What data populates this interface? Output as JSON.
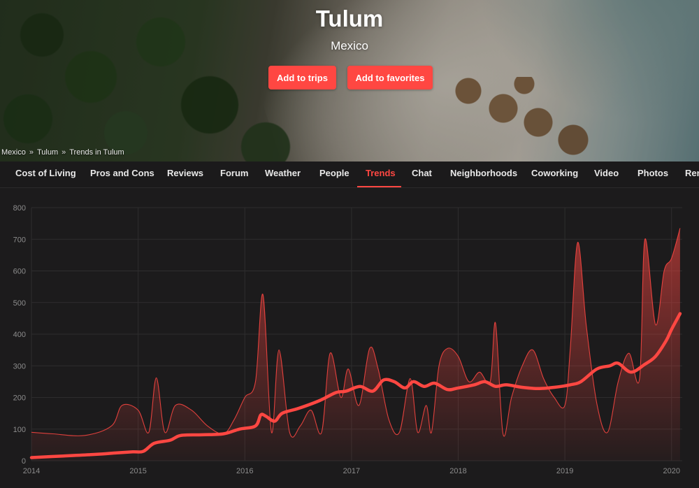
{
  "hero": {
    "title": "Tulum",
    "country": "Mexico",
    "add_to_trips_label": "Add to trips",
    "add_to_favorites_label": "Add to favorites"
  },
  "breadcrumb": [
    "Mexico",
    "Tulum",
    "Trends in Tulum"
  ],
  "breadcrumb_separator": "»",
  "tabs": [
    {
      "label": "Cost of Living"
    },
    {
      "label": "Pros and Cons"
    },
    {
      "label": "Reviews"
    },
    {
      "label": "Forum"
    },
    {
      "label": "Weather"
    },
    {
      "label": "People"
    },
    {
      "label": "Trends",
      "active": true
    },
    {
      "label": "Chat"
    },
    {
      "label": "Neighborhoods"
    },
    {
      "label": "Coworking"
    },
    {
      "label": "Video"
    },
    {
      "label": "Photos"
    },
    {
      "label": "Ren"
    }
  ],
  "colors": {
    "accent": "#ff4742",
    "background": "#1c1b1c",
    "grid": "#2e2d2e",
    "tick": "#8c8c8c"
  },
  "chart_data": {
    "type": "area",
    "title": "",
    "xlabel": "",
    "ylabel": "",
    "ylim": [
      0,
      800
    ],
    "xlim": [
      2014.0,
      2020.1
    ],
    "y_ticks": [
      0,
      100,
      200,
      300,
      400,
      500,
      600,
      700,
      800
    ],
    "x_ticks": [
      "2014",
      "2015",
      "2016",
      "2017",
      "2018",
      "2019",
      "2020"
    ],
    "grid": true,
    "legend": "none",
    "series": [
      {
        "name": "",
        "style": "thin-line-area",
        "x": [
          2014.0,
          2014.2,
          2014.5,
          2014.75,
          2014.85,
          2015.0,
          2015.1,
          2015.17,
          2015.25,
          2015.35,
          2015.5,
          2015.65,
          2015.8,
          2015.9,
          2016.0,
          2016.1,
          2016.17,
          2016.25,
          2016.32,
          2016.42,
          2016.52,
          2016.62,
          2016.72,
          2016.8,
          2016.9,
          2016.97,
          2017.07,
          2017.17,
          2017.25,
          2017.35,
          2017.45,
          2017.55,
          2017.62,
          2017.7,
          2017.75,
          2017.82,
          2017.9,
          2018.0,
          2018.1,
          2018.2,
          2018.3,
          2018.35,
          2018.42,
          2018.5,
          2018.6,
          2018.7,
          2018.8,
          2018.9,
          2019.0,
          2019.05,
          2019.12,
          2019.2,
          2019.3,
          2019.4,
          2019.5,
          2019.6,
          2019.7,
          2019.75,
          2019.85,
          2019.93,
          2020.0,
          2020.08
        ],
        "values": [
          90,
          85,
          80,
          110,
          175,
          160,
          90,
          262,
          90,
          175,
          160,
          110,
          85,
          130,
          200,
          250,
          525,
          90,
          350,
          90,
          110,
          160,
          90,
          340,
          200,
          290,
          175,
          355,
          290,
          130,
          90,
          260,
          90,
          175,
          90,
          300,
          355,
          330,
          250,
          280,
          250,
          435,
          85,
          200,
          300,
          350,
          260,
          200,
          175,
          350,
          690,
          430,
          180,
          90,
          250,
          340,
          260,
          700,
          430,
          600,
          640,
          735
        ]
      },
      {
        "name": "",
        "style": "thick-trend-line",
        "x": [
          2014.0,
          2014.3,
          2014.6,
          2014.8,
          2014.95,
          2015.05,
          2015.15,
          2015.3,
          2015.4,
          2015.6,
          2015.8,
          2015.95,
          2016.1,
          2016.15,
          2016.2,
          2016.28,
          2016.35,
          2016.5,
          2016.7,
          2016.85,
          2016.95,
          2017.08,
          2017.2,
          2017.3,
          2017.4,
          2017.5,
          2017.58,
          2017.68,
          2017.78,
          2017.9,
          2018.0,
          2018.15,
          2018.25,
          2018.35,
          2018.45,
          2018.6,
          2018.75,
          2018.9,
          2019.05,
          2019.15,
          2019.3,
          2019.42,
          2019.5,
          2019.62,
          2019.75,
          2019.85,
          2019.95,
          2020.0,
          2020.08
        ],
        "values": [
          10,
          15,
          20,
          25,
          28,
          30,
          55,
          65,
          80,
          82,
          85,
          100,
          110,
          145,
          140,
          125,
          150,
          165,
          190,
          215,
          220,
          235,
          220,
          255,
          250,
          230,
          250,
          235,
          245,
          225,
          230,
          240,
          250,
          235,
          240,
          232,
          228,
          232,
          240,
          250,
          290,
          300,
          308,
          280,
          305,
          330,
          380,
          415,
          465
        ]
      }
    ]
  }
}
